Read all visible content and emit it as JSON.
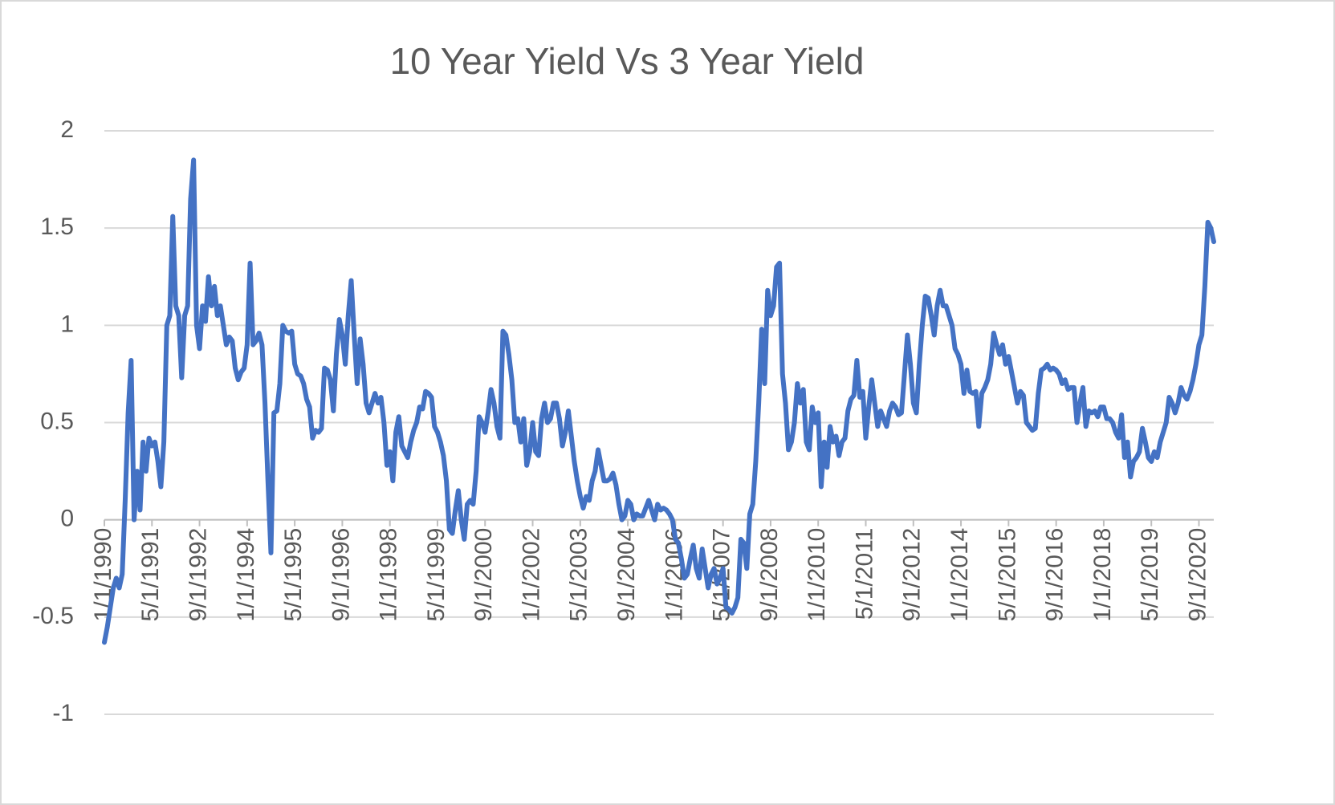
{
  "chart_data": {
    "type": "line",
    "title": "10 Year Yield Vs 3 Year Yield",
    "color": "#4472c4",
    "grid": true,
    "ylim": [
      -1,
      2
    ],
    "yticks": [
      -1,
      -0.5,
      0,
      0.5,
      1,
      1.5,
      2
    ],
    "categories": [
      "1/1/1990",
      null,
      null,
      null,
      null,
      null,
      null,
      null,
      null,
      null,
      null,
      null,
      null,
      null,
      null,
      null,
      "5/1/1991",
      null,
      null,
      null,
      null,
      null,
      null,
      null,
      null,
      null,
      null,
      null,
      null,
      null,
      null,
      null,
      "9/1/1992",
      null,
      null,
      null,
      null,
      null,
      null,
      null,
      null,
      null,
      null,
      null,
      null,
      null,
      null,
      null,
      "1/1/1994",
      null,
      null,
      null,
      null,
      null,
      null,
      null,
      null,
      null,
      null,
      null,
      null,
      null,
      null,
      null,
      "5/1/1995",
      null,
      null,
      null,
      null,
      null,
      null,
      null,
      null,
      null,
      null,
      null,
      null,
      null,
      null,
      null,
      "9/1/1996",
      null,
      null,
      null,
      null,
      null,
      null,
      null,
      null,
      null,
      null,
      null,
      null,
      null,
      null,
      null,
      "1/1/1998",
      null,
      null,
      null,
      null,
      null,
      null,
      null,
      null,
      null,
      null,
      null,
      null,
      null,
      null,
      null,
      "5/1/1999",
      null,
      null,
      null,
      null,
      null,
      null,
      null,
      null,
      null,
      null,
      null,
      null,
      null,
      null,
      null,
      "9/1/2000",
      null,
      null,
      null,
      null,
      null,
      null,
      null,
      null,
      null,
      null,
      null,
      null,
      null,
      null,
      null,
      "1/1/2002",
      null,
      null,
      null,
      null,
      null,
      null,
      null,
      null,
      null,
      null,
      null,
      null,
      null,
      null,
      null,
      "5/1/2003",
      null,
      null,
      null,
      null,
      null,
      null,
      null,
      null,
      null,
      null,
      null,
      null,
      null,
      null,
      null,
      "9/1/2004",
      null,
      null,
      null,
      null,
      null,
      null,
      null,
      null,
      null,
      null,
      null,
      null,
      null,
      null,
      null,
      "1/1/2006",
      null,
      null,
      null,
      null,
      null,
      null,
      null,
      null,
      null,
      null,
      null,
      null,
      null,
      null,
      null,
      "5/1/2007",
      null,
      null,
      null,
      null,
      null,
      null,
      null,
      null,
      null,
      null,
      null,
      null,
      null,
      null,
      null,
      "9/1/2008",
      null,
      null,
      null,
      null,
      null,
      null,
      null,
      null,
      null,
      null,
      null,
      null,
      null,
      null,
      null,
      "1/1/2010",
      null,
      null,
      null,
      null,
      null,
      null,
      null,
      null,
      null,
      null,
      null,
      null,
      null,
      null,
      null,
      "5/1/2011",
      null,
      null,
      null,
      null,
      null,
      null,
      null,
      null,
      null,
      null,
      null,
      null,
      null,
      null,
      null,
      "9/1/2012",
      null,
      null,
      null,
      null,
      null,
      null,
      null,
      null,
      null,
      null,
      null,
      null,
      null,
      null,
      null,
      "1/1/2014",
      null,
      null,
      null,
      null,
      null,
      null,
      null,
      null,
      null,
      null,
      null,
      null,
      null,
      null,
      null,
      "5/1/2015",
      null,
      null,
      null,
      null,
      null,
      null,
      null,
      null,
      null,
      null,
      null,
      null,
      null,
      null,
      null,
      "9/1/2016",
      null,
      null,
      null,
      null,
      null,
      null,
      null,
      null,
      null,
      null,
      null,
      null,
      null,
      null,
      null,
      "1/1/2018",
      null,
      null,
      null,
      null,
      null,
      null,
      null,
      null,
      null,
      null,
      null,
      null,
      null,
      null,
      null,
      "5/1/2019",
      null,
      null,
      null,
      null,
      null,
      null,
      null,
      null,
      null,
      null,
      null,
      null,
      null,
      null,
      null,
      "9/1/2020",
      null,
      null,
      null,
      null,
      null
    ],
    "values": [
      -0.63,
      -0.55,
      -0.45,
      -0.35,
      -0.3,
      -0.35,
      -0.28,
      0.1,
      0.55,
      0.82,
      0.0,
      0.25,
      0.05,
      0.4,
      0.25,
      0.42,
      0.38,
      0.4,
      0.3,
      0.17,
      0.4,
      1.0,
      1.05,
      1.56,
      1.1,
      1.05,
      0.73,
      1.05,
      1.1,
      1.65,
      1.85,
      1.0,
      0.88,
      1.1,
      1.02,
      1.25,
      1.1,
      1.2,
      1.05,
      1.1,
      1.0,
      0.9,
      0.94,
      0.92,
      0.78,
      0.72,
      0.76,
      0.78,
      0.9,
      1.32,
      0.9,
      0.92,
      0.96,
      0.9,
      0.6,
      0.2,
      -0.17,
      0.55,
      0.56,
      0.7,
      1.0,
      0.97,
      0.96,
      0.97,
      0.8,
      0.75,
      0.74,
      0.7,
      0.62,
      0.58,
      0.42,
      0.46,
      0.45,
      0.47,
      0.78,
      0.77,
      0.72,
      0.56,
      0.85,
      1.03,
      0.95,
      0.8,
      1.05,
      1.23,
      0.95,
      0.7,
      0.93,
      0.8,
      0.6,
      0.55,
      0.6,
      0.65,
      0.6,
      0.63,
      0.5,
      0.28,
      0.35,
      0.2,
      0.45,
      0.53,
      0.38,
      0.35,
      0.32,
      0.4,
      0.46,
      0.5,
      0.58,
      0.57,
      0.66,
      0.65,
      0.63,
      0.48,
      0.45,
      0.4,
      0.33,
      0.2,
      -0.05,
      -0.07,
      0.05,
      0.15,
      0.0,
      -0.1,
      0.08,
      0.1,
      0.08,
      0.25,
      0.53,
      0.5,
      0.45,
      0.55,
      0.67,
      0.6,
      0.48,
      0.42,
      0.97,
      0.95,
      0.85,
      0.72,
      0.5,
      0.52,
      0.4,
      0.52,
      0.28,
      0.35,
      0.5,
      0.35,
      0.33,
      0.52,
      0.6,
      0.5,
      0.52,
      0.6,
      0.6,
      0.52,
      0.38,
      0.45,
      0.56,
      0.43,
      0.3,
      0.2,
      0.12,
      0.06,
      0.12,
      0.1,
      0.2,
      0.25,
      0.36,
      0.28,
      0.2,
      0.2,
      0.21,
      0.24,
      0.18,
      0.08,
      0.0,
      0.02,
      0.1,
      0.08,
      0.0,
      0.03,
      0.02,
      0.02,
      0.06,
      0.1,
      0.05,
      0.0,
      0.08,
      0.05,
      0.06,
      0.05,
      0.03,
      0.0,
      -0.1,
      -0.12,
      -0.2,
      -0.3,
      -0.28,
      -0.2,
      -0.13,
      -0.25,
      -0.3,
      -0.15,
      -0.25,
      -0.35,
      -0.28,
      -0.25,
      -0.33,
      -0.3,
      -0.25,
      -0.45,
      -0.46,
      -0.48,
      -0.45,
      -0.4,
      -0.1,
      -0.12,
      -0.25,
      0.03,
      0.08,
      0.3,
      0.6,
      0.98,
      0.7,
      1.18,
      1.05,
      1.1,
      1.3,
      1.32,
      0.75,
      0.6,
      0.36,
      0.4,
      0.5,
      0.7,
      0.6,
      0.67,
      0.4,
      0.36,
      0.58,
      0.5,
      0.55,
      0.17,
      0.4,
      0.27,
      0.48,
      0.4,
      0.43,
      0.33,
      0.4,
      0.42,
      0.56,
      0.62,
      0.64,
      0.82,
      0.63,
      0.66,
      0.42,
      0.58,
      0.72,
      0.6,
      0.48,
      0.56,
      0.52,
      0.48,
      0.56,
      0.6,
      0.58,
      0.54,
      0.55,
      0.75,
      0.95,
      0.8,
      0.6,
      0.55,
      0.8,
      1.0,
      1.15,
      1.14,
      1.05,
      0.95,
      1.1,
      1.18,
      1.1,
      1.1,
      1.05,
      1.0,
      0.88,
      0.85,
      0.8,
      0.65,
      0.77,
      0.66,
      0.65,
      0.66,
      0.48,
      0.65,
      0.68,
      0.72,
      0.8,
      0.96,
      0.9,
      0.85,
      0.9,
      0.8,
      0.84,
      0.76,
      0.68,
      0.6,
      0.66,
      0.64,
      0.5,
      0.48,
      0.46,
      0.47,
      0.65,
      0.77,
      0.78,
      0.8,
      0.77,
      0.78,
      0.77,
      0.75,
      0.7,
      0.72,
      0.67,
      0.68,
      0.68,
      0.5,
      0.6,
      0.68,
      0.48,
      0.56,
      0.55,
      0.56,
      0.53,
      0.58,
      0.58,
      0.52,
      0.52,
      0.5,
      0.45,
      0.42,
      0.54,
      0.32,
      0.4,
      0.22,
      0.3,
      0.32,
      0.35,
      0.47,
      0.4,
      0.32,
      0.3,
      0.35,
      0.32,
      0.4,
      0.45,
      0.5,
      0.63,
      0.6,
      0.55,
      0.6,
      0.68,
      0.64,
      0.62,
      0.66,
      0.72,
      0.8,
      0.9,
      0.95,
      1.2,
      1.53,
      1.5,
      1.43
    ]
  }
}
